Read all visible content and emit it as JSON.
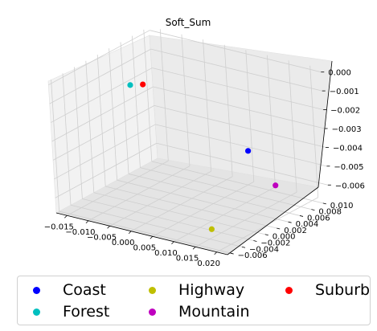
{
  "chart_data": {
    "type": "scatter3d",
    "title": "Soft_Sum",
    "xlabel": "",
    "ylabel": "",
    "zlabel": "",
    "x_ticks": [
      "−0.015",
      "−0.010",
      "−0.005",
      "0.000",
      "0.005",
      "0.010",
      "0.015",
      "0.020"
    ],
    "y_ticks": [
      "−0.006",
      "−0.004",
      "−0.002",
      "0.000",
      "0.002",
      "0.004",
      "0.006",
      "0.008",
      "0.010"
    ],
    "z_ticks": [
      "0.000",
      "−0.001",
      "−0.002",
      "−0.003",
      "−0.004",
      "−0.005",
      "−0.006"
    ],
    "grid": true,
    "legend_position": "bottom",
    "series": [
      {
        "name": "Coast",
        "color": "#0000ff",
        "x": 0.014,
        "y": 0.004,
        "z": -0.0035
      },
      {
        "name": "Forest",
        "color": "#00bfbf",
        "x": -0.013,
        "y": 0.004,
        "z": -0.0015
      },
      {
        "name": "Highway",
        "color": "#bfbf00",
        "x": 0.017,
        "y": -0.005,
        "z": -0.006
      },
      {
        "name": "Mountain",
        "color": "#bf00bf",
        "x": 0.02,
        "y": 0.004,
        "z": -0.005
      },
      {
        "name": "Suburb",
        "color": "#ff0000",
        "x": -0.01,
        "y": 0.004,
        "z": -0.0013
      }
    ]
  }
}
